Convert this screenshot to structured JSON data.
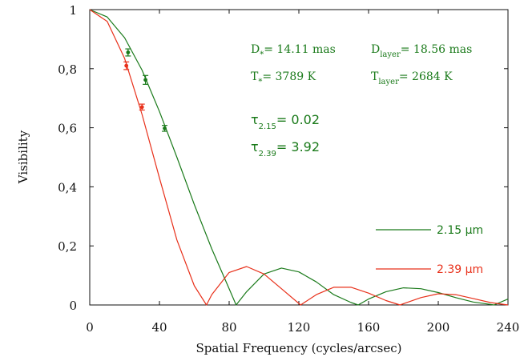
{
  "chart_data": {
    "type": "line",
    "xlabel": "Spatial Frequency (cycles/arcsec)",
    "ylabel": "Visibility",
    "xlim": [
      0,
      240
    ],
    "ylim": [
      0,
      1
    ],
    "x_ticks": [
      "0",
      "40",
      "80",
      "120",
      "160",
      "200",
      "240"
    ],
    "y_ticks": [
      "0",
      "0,2",
      "0,4",
      "0,6",
      "0,8",
      "1"
    ],
    "grid": false,
    "legend_position": "bottom-right",
    "colors": {
      "green": "#1a7a1a",
      "red": "#e8301a",
      "black": "#111111"
    },
    "annotations": {
      "d_star": {
        "main": "D",
        "sub": "*",
        "rest": "= 14.11 mas"
      },
      "d_layer": {
        "main": "D",
        "sub": "layer",
        "rest": "= 18.56 mas"
      },
      "t_star": {
        "main": "T",
        "sub": "*",
        "rest": "= 3789 K"
      },
      "t_layer": {
        "main": "T",
        "sub": "layer",
        "rest": "= 2684 K"
      },
      "tau_215": {
        "main": "τ",
        "sub": "2.15",
        "rest": "= 0.02"
      },
      "tau_239": {
        "main": "τ",
        "sub": "2.39",
        "rest": "= 3.92"
      }
    },
    "series": [
      {
        "name": "2.15 μm",
        "legend": {
          "value": "2.15",
          "unit": "μm"
        },
        "color": "#1a7a1a",
        "curve": {
          "x": [
            0,
            10,
            20,
            30,
            40,
            50,
            60,
            70,
            80,
            84,
            90,
            100,
            110,
            120,
            130,
            140,
            150,
            154,
            160,
            170,
            180,
            190,
            200,
            210,
            220,
            230,
            232,
            240
          ],
          "y": [
            1.0,
            0.975,
            0.905,
            0.795,
            0.655,
            0.5,
            0.34,
            0.19,
            0.055,
            0.0,
            0.045,
            0.105,
            0.125,
            0.112,
            0.078,
            0.035,
            0.008,
            0.0,
            0.02,
            0.045,
            0.058,
            0.055,
            0.042,
            0.025,
            0.01,
            0.002,
            0.0,
            0.02
          ]
        },
        "points": {
          "x": [
            22,
            32,
            43
          ],
          "y": [
            0.855,
            0.762,
            0.598
          ],
          "err": [
            0.012,
            0.015,
            0.01
          ]
        }
      },
      {
        "name": "2.39 μm",
        "legend": {
          "value": "2.39",
          "unit": "μm"
        },
        "color": "#e8301a",
        "curve": {
          "x": [
            0,
            10,
            20,
            30,
            40,
            50,
            60,
            67,
            70,
            80,
            90,
            100,
            110,
            121,
            130,
            140,
            150,
            160,
            170,
            178,
            190,
            200,
            210,
            220,
            230,
            240
          ],
          "y": [
            1.0,
            0.96,
            0.835,
            0.645,
            0.43,
            0.22,
            0.065,
            0.0,
            0.035,
            0.11,
            0.13,
            0.105,
            0.055,
            0.0,
            0.035,
            0.06,
            0.06,
            0.04,
            0.015,
            0.0,
            0.025,
            0.038,
            0.035,
            0.022,
            0.008,
            0.0
          ]
        },
        "points": {
          "x": [
            21,
            30
          ],
          "y": [
            0.81,
            0.67
          ],
          "err": [
            0.013,
            0.01
          ]
        }
      }
    ]
  }
}
